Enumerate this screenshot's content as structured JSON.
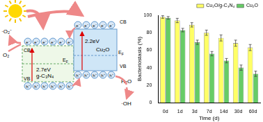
{
  "chart_data": {
    "type": "bar",
    "categories": [
      "0d",
      "1d",
      "3d",
      "7d",
      "14d",
      "30d",
      "60d"
    ],
    "series": [
      {
        "name": "Cu₂O/g-C₃N₄",
        "color": "#ffff66",
        "values": [
          98,
          94,
          89,
          80,
          74,
          68,
          63
        ],
        "errors": [
          1.5,
          2.5,
          2.5,
          3,
          3.5,
          3.5,
          3.5
        ]
      },
      {
        "name": "Cu₂O",
        "color": "#66cc66",
        "values": [
          97,
          83,
          69,
          56,
          48,
          40,
          33
        ],
        "errors": [
          1.5,
          2,
          2.5,
          2.5,
          2.5,
          3,
          3
        ]
      }
    ],
    "x_label": "Time (d)",
    "y_label": "Bacteriostasis (%)",
    "ylim": [
      0,
      100
    ],
    "yticks": [
      0,
      20,
      40,
      60,
      80,
      100
    ],
    "grid": false,
    "legend": "top-right"
  },
  "diagram": {
    "semiconductors": [
      {
        "name": "g-C₃N₄",
        "gap": "2.7eV",
        "cb": "CB",
        "vb": "VB",
        "fermi": "EF"
      },
      {
        "name": "Cu₂O",
        "gap": "2.2eV",
        "cb": "CB",
        "vb": "VB",
        "fermi": "EF"
      }
    ],
    "electron": "e⁻",
    "hole": "h⁺",
    "reduction": {
      "from": "O₂",
      "to": "·O₂⁻"
    },
    "oxidation": {
      "from": "H₂O",
      "to": "·OH"
    }
  }
}
